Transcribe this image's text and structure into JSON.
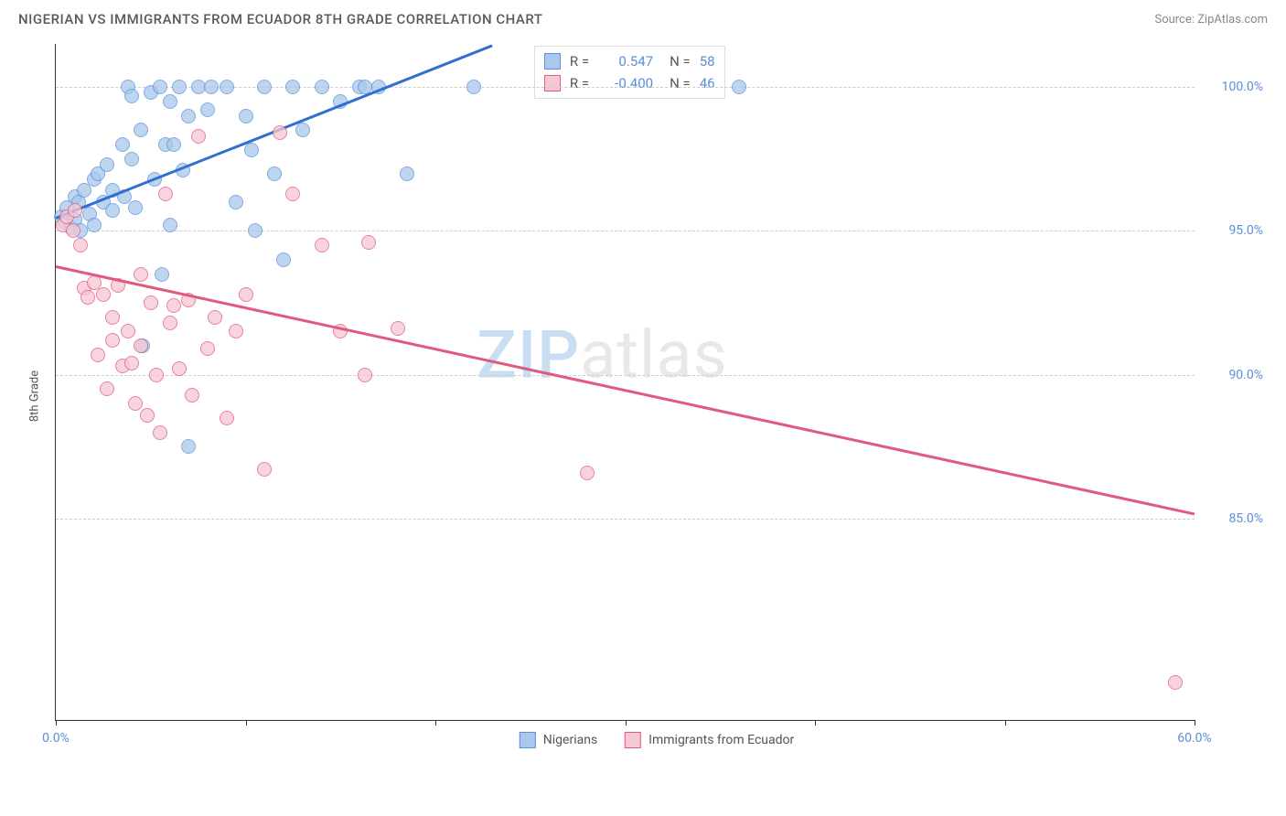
{
  "header": {
    "title": "NIGERIAN VS IMMIGRANTS FROM ECUADOR 8TH GRADE CORRELATION CHART",
    "source": "Source: ZipAtlas.com"
  },
  "chart": {
    "type": "scatter",
    "y_axis_label": "8th Grade",
    "x_range": [
      0,
      60
    ],
    "y_range": [
      78,
      101.5
    ],
    "x_ticks": [
      0,
      10,
      20,
      30,
      40,
      50,
      60
    ],
    "x_tick_labels": {
      "0": "0.0%",
      "60": "60.0%"
    },
    "y_gridlines": [
      85,
      90,
      95,
      100
    ],
    "y_tick_labels": {
      "85": "85.0%",
      "90": "90.0%",
      "95": "95.0%",
      "100": "100.0%"
    },
    "grid_color": "#cccccc",
    "background_color": "#ffffff",
    "series": [
      {
        "name": "Nigerians",
        "fill_color": "#a9c8ec",
        "border_color": "#5b8fd6",
        "R": "0.547",
        "N": "58",
        "trend": {
          "x1": 0,
          "y1": 95.5,
          "x2": 23,
          "y2": 101.5,
          "color": "#2f6fd0",
          "width": 2.5
        },
        "points": [
          [
            0.3,
            95.5
          ],
          [
            0.5,
            95.3
          ],
          [
            0.6,
            95.8
          ],
          [
            0.8,
            95.1
          ],
          [
            1.0,
            96.2
          ],
          [
            1.0,
            95.4
          ],
          [
            1.2,
            96.0
          ],
          [
            1.3,
            95.0
          ],
          [
            1.5,
            96.4
          ],
          [
            1.8,
            95.6
          ],
          [
            2.0,
            96.8
          ],
          [
            2.0,
            95.2
          ],
          [
            2.2,
            97.0
          ],
          [
            2.5,
            96.0
          ],
          [
            2.7,
            97.3
          ],
          [
            3.0,
            96.4
          ],
          [
            3.0,
            95.7
          ],
          [
            3.5,
            98.0
          ],
          [
            3.6,
            96.2
          ],
          [
            3.8,
            100.0
          ],
          [
            4.0,
            99.7
          ],
          [
            4.0,
            97.5
          ],
          [
            4.2,
            95.8
          ],
          [
            4.5,
            98.5
          ],
          [
            4.6,
            91.0
          ],
          [
            5.0,
            99.8
          ],
          [
            5.2,
            96.8
          ],
          [
            5.5,
            100.0
          ],
          [
            5.6,
            93.5
          ],
          [
            5.8,
            98.0
          ],
          [
            6.0,
            99.5
          ],
          [
            6.0,
            95.2
          ],
          [
            6.2,
            98.0
          ],
          [
            6.5,
            100.0
          ],
          [
            6.7,
            97.1
          ],
          [
            7.0,
            99.0
          ],
          [
            7.0,
            87.5
          ],
          [
            7.5,
            100.0
          ],
          [
            8.0,
            99.2
          ],
          [
            8.2,
            100.0
          ],
          [
            9.0,
            100.0
          ],
          [
            9.5,
            96.0
          ],
          [
            10.0,
            99.0
          ],
          [
            10.3,
            97.8
          ],
          [
            10.5,
            95.0
          ],
          [
            11.0,
            100.0
          ],
          [
            11.5,
            97.0
          ],
          [
            12.0,
            94.0
          ],
          [
            12.5,
            100.0
          ],
          [
            13.0,
            98.5
          ],
          [
            14.0,
            100.0
          ],
          [
            15.0,
            99.5
          ],
          [
            16.0,
            100.0
          ],
          [
            16.3,
            100.0
          ],
          [
            17.0,
            100.0
          ],
          [
            18.5,
            97.0
          ],
          [
            22.0,
            100.0
          ],
          [
            36.0,
            100.0
          ]
        ]
      },
      {
        "name": "Immigrants from Ecuador",
        "fill_color": "#f6c8d4",
        "border_color": "#e05a7e",
        "R": "-0.400",
        "N": "46",
        "trend": {
          "x1": 0,
          "y1": 93.8,
          "x2": 60,
          "y2": 85.2,
          "color": "#e05a7e",
          "width": 2.5
        },
        "points": [
          [
            0.4,
            95.2
          ],
          [
            0.6,
            95.5
          ],
          [
            0.9,
            95.0
          ],
          [
            1.0,
            95.7
          ],
          [
            1.3,
            94.5
          ],
          [
            1.5,
            93.0
          ],
          [
            1.7,
            92.7
          ],
          [
            2.0,
            93.2
          ],
          [
            2.2,
            90.7
          ],
          [
            2.5,
            92.8
          ],
          [
            2.7,
            89.5
          ],
          [
            3.0,
            92.0
          ],
          [
            3.0,
            91.2
          ],
          [
            3.3,
            93.1
          ],
          [
            3.5,
            90.3
          ],
          [
            3.8,
            91.5
          ],
          [
            4.0,
            90.4
          ],
          [
            4.2,
            89.0
          ],
          [
            4.5,
            93.5
          ],
          [
            4.5,
            91.0
          ],
          [
            4.8,
            88.6
          ],
          [
            5.0,
            92.5
          ],
          [
            5.3,
            90.0
          ],
          [
            5.5,
            88.0
          ],
          [
            5.8,
            96.3
          ],
          [
            6.0,
            91.8
          ],
          [
            6.2,
            92.4
          ],
          [
            6.5,
            90.2
          ],
          [
            7.0,
            92.6
          ],
          [
            7.2,
            89.3
          ],
          [
            7.5,
            98.3
          ],
          [
            8.0,
            90.9
          ],
          [
            8.4,
            92.0
          ],
          [
            9.0,
            88.5
          ],
          [
            9.5,
            91.5
          ],
          [
            10.0,
            92.8
          ],
          [
            11.0,
            86.7
          ],
          [
            11.8,
            98.4
          ],
          [
            12.5,
            96.3
          ],
          [
            14.0,
            94.5
          ],
          [
            15.0,
            91.5
          ],
          [
            16.3,
            90.0
          ],
          [
            16.5,
            94.6
          ],
          [
            18.0,
            91.6
          ],
          [
            28.0,
            86.6
          ],
          [
            59.0,
            79.3
          ]
        ]
      }
    ],
    "legend_top": {
      "rows": [
        {
          "swatch_fill": "#a9c8ec",
          "swatch_border": "#5b8fd6",
          "r_label": "R =",
          "r_val": "0.547",
          "n_label": "N =",
          "n_val": "58"
        },
        {
          "swatch_fill": "#f6c8d4",
          "swatch_border": "#e05a7e",
          "r_label": "R =",
          "r_val": "-0.400",
          "n_label": "N =",
          "n_val": "46"
        }
      ]
    },
    "legend_bottom": [
      {
        "swatch_fill": "#a9c8ec",
        "swatch_border": "#5b8fd6",
        "label": "Nigerians"
      },
      {
        "swatch_fill": "#f6c8d4",
        "swatch_border": "#e05a7e",
        "label": "Immigrants from Ecuador"
      }
    ],
    "watermark": {
      "part1": "ZIP",
      "part2": "atlas"
    }
  }
}
